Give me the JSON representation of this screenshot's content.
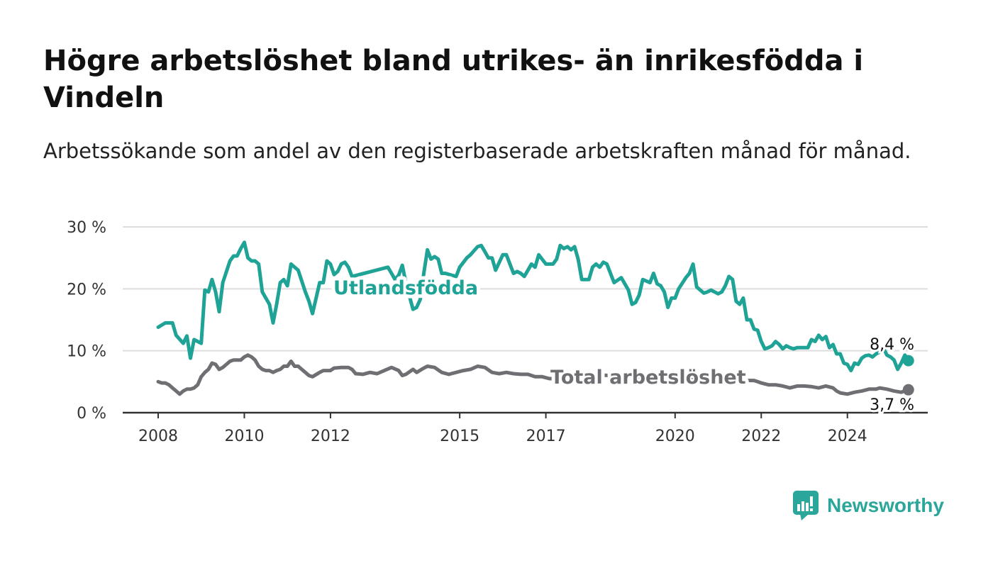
{
  "title": "Högre arbetslöshet bland utrikes- än inrikesfödda i Vindeln",
  "subtitle": "Arbetssökande som andel av den registerbaserade arbetskraften månad för månad.",
  "brand": {
    "name": "Newsworthy",
    "color": "#2ba69b",
    "icon": "bar-chart-speech-bubble-icon"
  },
  "colors": {
    "utlandsfodda": "#1ea396",
    "total": "#6f6f73",
    "grid": "#dddddd",
    "axis": "#333333"
  },
  "chart_data": {
    "type": "line",
    "xlim": [
      "2008-01",
      "2025-10"
    ],
    "ylim": [
      0,
      30
    ],
    "y_ticks": [
      0,
      10,
      20,
      30
    ],
    "y_tick_labels": [
      "0 %",
      "10 %",
      "20 %",
      "30 %"
    ],
    "x_ticks": [
      "2008-01",
      "2010-01",
      "2012-01",
      "2015-01",
      "2017-01",
      "2020-01",
      "2022-01",
      "2024-01"
    ],
    "x_tick_labels": [
      "2008",
      "2010",
      "2012",
      "2015",
      "2017",
      "2020",
      "2022",
      "2024"
    ],
    "grid": true,
    "legend": "inline",
    "series": [
      {
        "name": "Utlandsfödda",
        "end_label": "8,4 %",
        "points": [
          [
            "2008-01",
            13.8
          ],
          [
            "2008-03",
            14.5
          ],
          [
            "2008-05",
            14.5
          ],
          [
            "2008-06",
            12.5
          ],
          [
            "2008-08",
            11.2
          ],
          [
            "2008-09",
            12.4
          ],
          [
            "2008-10",
            8.8
          ],
          [
            "2008-11",
            11.8
          ],
          [
            "2009-01",
            11.2
          ],
          [
            "2009-02",
            19.8
          ],
          [
            "2009-03",
            19.5
          ],
          [
            "2009-04",
            21.5
          ],
          [
            "2009-05",
            19.5
          ],
          [
            "2009-06",
            16.3
          ],
          [
            "2009-07",
            21.0
          ],
          [
            "2009-09",
            24.5
          ],
          [
            "2009-10",
            25.3
          ],
          [
            "2009-11",
            25.3
          ],
          [
            "2009-12",
            26.5
          ],
          [
            "2010-01",
            27.5
          ],
          [
            "2010-02",
            25.0
          ],
          [
            "2010-03",
            24.5
          ],
          [
            "2010-04",
            24.5
          ],
          [
            "2010-05",
            24.0
          ],
          [
            "2010-06",
            19.5
          ],
          [
            "2010-08",
            17.5
          ],
          [
            "2010-09",
            14.5
          ],
          [
            "2010-10",
            17.5
          ],
          [
            "2010-11",
            21.0
          ],
          [
            "2010-12",
            21.5
          ],
          [
            "2011-01",
            20.5
          ],
          [
            "2011-02",
            24.0
          ],
          [
            "2011-04",
            23.0
          ],
          [
            "2011-06",
            19.5
          ],
          [
            "2011-07",
            18.0
          ],
          [
            "2011-08",
            16.0
          ],
          [
            "2011-10",
            21.0
          ],
          [
            "2011-11",
            21.0
          ],
          [
            "2011-12",
            24.5
          ],
          [
            "2012-01",
            24.0
          ],
          [
            "2012-02",
            22.3
          ],
          [
            "2012-03",
            22.8
          ],
          [
            "2012-04",
            24.0
          ],
          [
            "2012-05",
            24.3
          ],
          [
            "2012-06",
            23.5
          ],
          [
            "2012-07",
            22.0
          ],
          [
            "2013-05",
            23.5
          ],
          [
            "2013-06",
            22.5
          ],
          [
            "2013-07",
            21.5
          ],
          [
            "2013-08",
            22.2
          ],
          [
            "2013-09",
            23.8
          ],
          [
            "2013-10",
            21.0
          ],
          [
            "2013-11",
            18.8
          ],
          [
            "2013-12",
            16.7
          ],
          [
            "2014-01",
            17.0
          ],
          [
            "2014-02",
            18.3
          ],
          [
            "2014-03",
            22.5
          ],
          [
            "2014-04",
            26.3
          ],
          [
            "2014-05",
            24.8
          ],
          [
            "2014-06",
            25.2
          ],
          [
            "2014-07",
            24.8
          ],
          [
            "2014-08",
            22.5
          ],
          [
            "2014-09",
            22.5
          ],
          [
            "2014-12",
            22.0
          ],
          [
            "2015-01",
            23.5
          ],
          [
            "2015-03",
            25.0
          ],
          [
            "2015-04",
            25.5
          ],
          [
            "2015-06",
            26.8
          ],
          [
            "2015-07",
            27.0
          ],
          [
            "2015-08",
            26.0
          ],
          [
            "2015-09",
            25.0
          ],
          [
            "2015-10",
            25.0
          ],
          [
            "2015-11",
            23.0
          ],
          [
            "2016-01",
            25.5
          ],
          [
            "2016-02",
            25.5
          ],
          [
            "2016-04",
            22.5
          ],
          [
            "2016-05",
            22.8
          ],
          [
            "2016-06",
            22.5
          ],
          [
            "2016-07",
            22.0
          ],
          [
            "2016-09",
            24.0
          ],
          [
            "2016-10",
            23.5
          ],
          [
            "2016-11",
            25.5
          ],
          [
            "2017-01",
            24.0
          ],
          [
            "2017-03",
            24.0
          ],
          [
            "2017-04",
            24.8
          ],
          [
            "2017-05",
            27.0
          ],
          [
            "2017-06",
            26.5
          ],
          [
            "2017-07",
            26.8
          ],
          [
            "2017-08",
            26.3
          ],
          [
            "2017-09",
            26.8
          ],
          [
            "2017-10",
            24.8
          ],
          [
            "2017-11",
            21.5
          ],
          [
            "2018-01",
            21.5
          ],
          [
            "2018-02",
            23.5
          ],
          [
            "2018-03",
            24.0
          ],
          [
            "2018-04",
            23.5
          ],
          [
            "2018-05",
            24.3
          ],
          [
            "2018-06",
            24.0
          ],
          [
            "2018-07",
            22.5
          ],
          [
            "2018-08",
            21.0
          ],
          [
            "2018-10",
            21.8
          ],
          [
            "2018-11",
            20.8
          ],
          [
            "2018-12",
            19.8
          ],
          [
            "2019-01",
            17.5
          ],
          [
            "2019-02",
            17.8
          ],
          [
            "2019-03",
            19.0
          ],
          [
            "2019-04",
            21.5
          ],
          [
            "2019-06",
            21.0
          ],
          [
            "2019-07",
            22.5
          ],
          [
            "2019-08",
            20.8
          ],
          [
            "2019-09",
            20.5
          ],
          [
            "2019-10",
            19.5
          ],
          [
            "2019-11",
            17.0
          ],
          [
            "2019-12",
            18.5
          ],
          [
            "2020-01",
            18.5
          ],
          [
            "2020-02",
            20.0
          ],
          [
            "2020-04",
            21.8
          ],
          [
            "2020-05",
            22.5
          ],
          [
            "2020-06",
            24.0
          ],
          [
            "2020-07",
            20.3
          ],
          [
            "2020-09",
            19.3
          ],
          [
            "2020-10",
            19.5
          ],
          [
            "2020-11",
            19.8
          ],
          [
            "2021-01",
            19.2
          ],
          [
            "2021-02",
            19.5
          ],
          [
            "2021-03",
            20.5
          ],
          [
            "2021-04",
            22.0
          ],
          [
            "2021-05",
            21.5
          ],
          [
            "2021-06",
            18.0
          ],
          [
            "2021-07",
            17.5
          ],
          [
            "2021-08",
            18.5
          ],
          [
            "2021-09",
            15.0
          ],
          [
            "2021-10",
            15.0
          ],
          [
            "2021-11",
            13.5
          ],
          [
            "2021-12",
            13.3
          ],
          [
            "2022-01",
            11.5
          ],
          [
            "2022-02",
            10.3
          ],
          [
            "2022-03",
            10.5
          ],
          [
            "2022-04",
            10.8
          ],
          [
            "2022-05",
            11.5
          ],
          [
            "2022-06",
            11.0
          ],
          [
            "2022-07",
            10.3
          ],
          [
            "2022-08",
            10.8
          ],
          [
            "2022-09",
            10.5
          ],
          [
            "2022-10",
            10.3
          ],
          [
            "2022-11",
            10.5
          ],
          [
            "2023-01",
            10.5
          ],
          [
            "2023-02",
            10.5
          ],
          [
            "2023-03",
            11.8
          ],
          [
            "2023-04",
            11.5
          ],
          [
            "2023-05",
            12.5
          ],
          [
            "2023-06",
            11.8
          ],
          [
            "2023-07",
            12.3
          ],
          [
            "2023-08",
            10.5
          ],
          [
            "2023-09",
            11.0
          ],
          [
            "2023-10",
            9.5
          ],
          [
            "2023-11",
            9.5
          ],
          [
            "2023-12",
            8.0
          ],
          [
            "2024-01",
            7.8
          ],
          [
            "2024-02",
            6.8
          ],
          [
            "2024-03",
            8.0
          ],
          [
            "2024-04",
            7.8
          ],
          [
            "2024-05",
            8.8
          ],
          [
            "2024-06",
            9.2
          ],
          [
            "2024-07",
            9.3
          ],
          [
            "2024-08",
            9.0
          ],
          [
            "2024-09",
            9.5
          ],
          [
            "2024-10",
            9.8
          ],
          [
            "2024-11",
            10.5
          ],
          [
            "2024-12",
            9.3
          ],
          [
            "2025-01",
            9.0
          ],
          [
            "2025-02",
            8.5
          ],
          [
            "2025-03",
            7.0
          ],
          [
            "2025-04",
            8.0
          ],
          [
            "2025-05",
            9.3
          ],
          [
            "2025-06",
            8.4
          ]
        ]
      },
      {
        "name": "Total arbetslöshet",
        "end_label": "3,7 %",
        "points": [
          [
            "2008-01",
            5.0
          ],
          [
            "2008-02",
            4.8
          ],
          [
            "2008-03",
            4.8
          ],
          [
            "2008-04",
            4.5
          ],
          [
            "2008-05",
            4.0
          ],
          [
            "2008-06",
            3.5
          ],
          [
            "2008-07",
            3.0
          ],
          [
            "2008-08",
            3.5
          ],
          [
            "2008-09",
            3.8
          ],
          [
            "2008-10",
            3.8
          ],
          [
            "2008-11",
            4.0
          ],
          [
            "2008-12",
            4.5
          ],
          [
            "2009-01",
            5.8
          ],
          [
            "2009-02",
            6.5
          ],
          [
            "2009-03",
            7.0
          ],
          [
            "2009-04",
            8.0
          ],
          [
            "2009-05",
            7.8
          ],
          [
            "2009-06",
            7.0
          ],
          [
            "2009-07",
            7.3
          ],
          [
            "2009-08",
            7.8
          ],
          [
            "2009-09",
            8.3
          ],
          [
            "2009-10",
            8.5
          ],
          [
            "2009-11",
            8.5
          ],
          [
            "2009-12",
            8.5
          ],
          [
            "2010-01",
            9.0
          ],
          [
            "2010-02",
            9.3
          ],
          [
            "2010-03",
            9.0
          ],
          [
            "2010-04",
            8.5
          ],
          [
            "2010-05",
            7.5
          ],
          [
            "2010-06",
            7.0
          ],
          [
            "2010-07",
            6.8
          ],
          [
            "2010-08",
            6.8
          ],
          [
            "2010-09",
            6.5
          ],
          [
            "2010-10",
            6.8
          ],
          [
            "2010-11",
            7.0
          ],
          [
            "2010-12",
            7.5
          ],
          [
            "2011-01",
            7.5
          ],
          [
            "2011-02",
            8.3
          ],
          [
            "2011-03",
            7.5
          ],
          [
            "2011-04",
            7.5
          ],
          [
            "2011-05",
            7.0
          ],
          [
            "2011-06",
            6.5
          ],
          [
            "2011-07",
            6.0
          ],
          [
            "2011-08",
            5.8
          ],
          [
            "2011-10",
            6.5
          ],
          [
            "2011-11",
            6.8
          ],
          [
            "2011-12",
            6.8
          ],
          [
            "2012-01",
            6.8
          ],
          [
            "2012-02",
            7.2
          ],
          [
            "2012-04",
            7.3
          ],
          [
            "2012-06",
            7.3
          ],
          [
            "2012-07",
            7.0
          ],
          [
            "2012-08",
            6.3
          ],
          [
            "2012-10",
            6.2
          ],
          [
            "2012-12",
            6.5
          ],
          [
            "2013-02",
            6.3
          ],
          [
            "2013-04",
            6.8
          ],
          [
            "2013-06",
            7.3
          ],
          [
            "2013-08",
            6.8
          ],
          [
            "2013-09",
            6.0
          ],
          [
            "2013-10",
            6.2
          ],
          [
            "2013-12",
            7.0
          ],
          [
            "2014-01",
            6.5
          ],
          [
            "2014-03",
            7.2
          ],
          [
            "2014-04",
            7.5
          ],
          [
            "2014-06",
            7.3
          ],
          [
            "2014-08",
            6.5
          ],
          [
            "2014-10",
            6.2
          ],
          [
            "2014-12",
            6.5
          ],
          [
            "2015-02",
            6.8
          ],
          [
            "2015-04",
            7.0
          ],
          [
            "2015-06",
            7.5
          ],
          [
            "2015-08",
            7.3
          ],
          [
            "2015-10",
            6.5
          ],
          [
            "2015-12",
            6.3
          ],
          [
            "2016-02",
            6.5
          ],
          [
            "2016-04",
            6.3
          ],
          [
            "2016-06",
            6.2
          ],
          [
            "2016-08",
            6.2
          ],
          [
            "2016-10",
            5.8
          ],
          [
            "2016-12",
            5.8
          ],
          [
            "2017-02",
            5.5
          ],
          [
            "2017-03",
            5.5
          ],
          [
            "2017-05",
            6.3
          ],
          [
            "2021-10",
            5.2
          ],
          [
            "2021-11",
            5.2
          ],
          [
            "2021-12",
            5.0
          ],
          [
            "2022-01",
            4.8
          ],
          [
            "2022-03",
            4.5
          ],
          [
            "2022-05",
            4.5
          ],
          [
            "2022-07",
            4.3
          ],
          [
            "2022-09",
            4.0
          ],
          [
            "2022-11",
            4.3
          ],
          [
            "2023-01",
            4.3
          ],
          [
            "2023-03",
            4.2
          ],
          [
            "2023-05",
            4.0
          ],
          [
            "2023-07",
            4.3
          ],
          [
            "2023-09",
            4.0
          ],
          [
            "2023-10",
            3.5
          ],
          [
            "2023-11",
            3.2
          ],
          [
            "2024-01",
            3.0
          ],
          [
            "2024-03",
            3.3
          ],
          [
            "2024-05",
            3.5
          ],
          [
            "2024-07",
            3.8
          ],
          [
            "2024-09",
            3.8
          ],
          [
            "2024-10",
            4.0
          ],
          [
            "2024-12",
            3.8
          ],
          [
            "2025-02",
            3.5
          ],
          [
            "2025-04",
            3.3
          ],
          [
            "2025-05",
            3.5
          ],
          [
            "2025-06",
            3.7
          ]
        ]
      }
    ]
  }
}
